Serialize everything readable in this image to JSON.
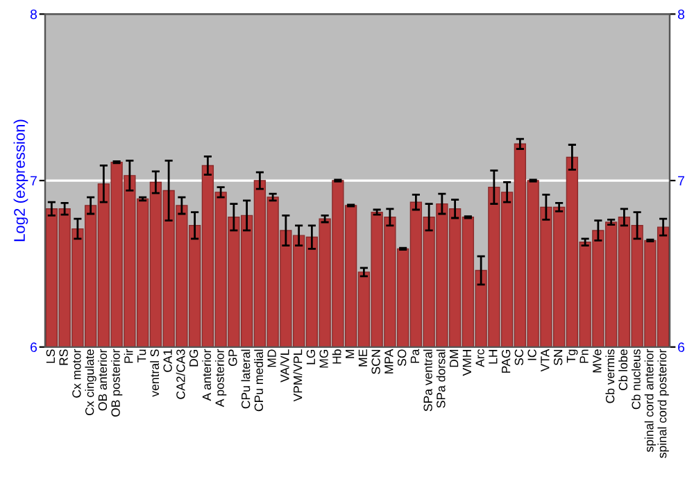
{
  "chart_data": {
    "type": "bar",
    "ylabel": "Log2 (expression)",
    "categories": [
      "LS",
      "RS",
      "Cx motor",
      "Cx cingulate",
      "OB anterior",
      "OB posterior",
      "Pir",
      "Tu",
      "ventral S",
      "CA1",
      "CA2/CA3",
      "DG",
      "A anterior",
      "A posterior",
      "GP",
      "CPu lateral",
      "CPu medial",
      "MD",
      "VA/VL",
      "VPM/VPL",
      "LG",
      "MG",
      "Hb",
      "M",
      "ME",
      "SCN",
      "MPA",
      "SO",
      "Pa",
      "SPa ventral",
      "SPa dorsal",
      "DM",
      "VMH",
      "Arc",
      "LH",
      "PAG",
      "SC",
      "IC",
      "VTA",
      "SN",
      "Tg",
      "Pn",
      "MVe",
      "Cb vermis",
      "Cb lobe",
      "Cb nucleus",
      "spinal cord anterior",
      "spinal cord posterior"
    ],
    "values": [
      6.83,
      6.83,
      6.71,
      6.85,
      6.98,
      7.11,
      7.03,
      6.89,
      6.99,
      6.94,
      6.85,
      6.73,
      7.09,
      6.93,
      6.78,
      6.79,
      7.0,
      6.9,
      6.7,
      6.67,
      6.66,
      6.77,
      7.0,
      6.85,
      6.45,
      6.81,
      6.78,
      6.59,
      6.87,
      6.78,
      6.86,
      6.83,
      6.78,
      6.46,
      6.96,
      6.93,
      7.22,
      7.0,
      6.84,
      6.84,
      7.14,
      6.63,
      6.7,
      6.75,
      6.78,
      6.73,
      6.64,
      6.72
    ],
    "errors": [
      0.04,
      0.035,
      0.06,
      0.05,
      0.11,
      0.005,
      0.09,
      0.01,
      0.065,
      0.18,
      0.05,
      0.08,
      0.055,
      0.03,
      0.08,
      0.09,
      0.05,
      0.02,
      0.09,
      0.06,
      0.07,
      0.02,
      0.005,
      0.005,
      0.025,
      0.015,
      0.05,
      0.005,
      0.045,
      0.08,
      0.06,
      0.055,
      0.005,
      0.085,
      0.1,
      0.06,
      0.03,
      0.005,
      0.075,
      0.025,
      0.075,
      0.02,
      0.06,
      0.015,
      0.05,
      0.08,
      0.005,
      0.05
    ],
    "color": "#b83a3a",
    "ylim": [
      6,
      8
    ],
    "yticks": [
      6,
      7,
      8
    ],
    "y2lim": [
      6,
      8
    ],
    "y2ticks": [
      6,
      7,
      8
    ],
    "grid": "y"
  }
}
